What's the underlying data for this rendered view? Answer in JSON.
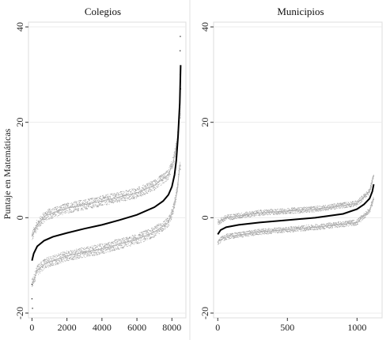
{
  "figure": {
    "ylabel": "Puntaje en Matemáticas"
  },
  "chart_data": [
    {
      "type": "scatter",
      "title": "Colegios",
      "xlabel": "",
      "ylabel": "Puntaje en Matemáticas",
      "xlim": [
        -200,
        8800
      ],
      "ylim": [
        -21,
        41
      ],
      "xticks": [
        0,
        2000,
        4000,
        6000,
        8000
      ],
      "yticks": [
        -20,
        0,
        20,
        40
      ],
      "grid": true,
      "n_points": 8500,
      "series": [
        {
          "role": "estimate",
          "x": [
            0,
            100,
            300,
            700,
            1200,
            2000,
            3000,
            4000,
            5000,
            6000,
            7000,
            7500,
            7800,
            8000,
            8150,
            8250,
            8350,
            8450,
            8500
          ],
          "y": [
            -9,
            -7.5,
            -6,
            -4.8,
            -4,
            -3.2,
            -2.3,
            -1.5,
            -0.5,
            0.6,
            2.2,
            3.5,
            4.8,
            6.5,
            9,
            12,
            17,
            24,
            32
          ]
        },
        {
          "role": "upper band",
          "x": [
            0,
            300,
            800,
            2000,
            4000,
            6000,
            7000,
            7800,
            8100,
            8300,
            8450
          ],
          "y": [
            -4,
            -1.5,
            0.5,
            2,
            3.5,
            5.2,
            6.8,
            9,
            12,
            16,
            22
          ]
        },
        {
          "role": "lower band",
          "x": [
            0,
            300,
            800,
            2000,
            4000,
            6000,
            7000,
            7800,
            8100,
            8300,
            8450
          ],
          "y": [
            -14,
            -11,
            -9.5,
            -8,
            -6.5,
            -4.5,
            -3,
            -1,
            2,
            5.5,
            11
          ]
        }
      ]
    },
    {
      "type": "scatter",
      "title": "Municipios",
      "xlabel": "",
      "ylabel": "",
      "xlim": [
        -30,
        1180
      ],
      "ylim": [
        -21,
        41
      ],
      "xticks": [
        0,
        500,
        1000
      ],
      "yticks": [
        -20,
        0,
        20,
        40
      ],
      "grid": true,
      "n_points": 1120,
      "series": [
        {
          "role": "estimate",
          "x": [
            0,
            20,
            60,
            150,
            300,
            500,
            700,
            900,
            1000,
            1050,
            1090,
            1110,
            1120
          ],
          "y": [
            -3.5,
            -2.6,
            -2,
            -1.5,
            -1,
            -0.5,
            0,
            0.8,
            1.8,
            2.8,
            4,
            5.5,
            7
          ]
        },
        {
          "role": "upper band",
          "x": [
            0,
            60,
            300,
            700,
            1000,
            1090,
            1120
          ],
          "y": [
            -1,
            0,
            1,
            1.8,
            3,
            5.5,
            9
          ]
        },
        {
          "role": "lower band",
          "x": [
            0,
            60,
            300,
            700,
            1000,
            1090,
            1120
          ],
          "y": [
            -5,
            -4,
            -3,
            -2,
            -1,
            1.5,
            4
          ]
        }
      ]
    }
  ]
}
